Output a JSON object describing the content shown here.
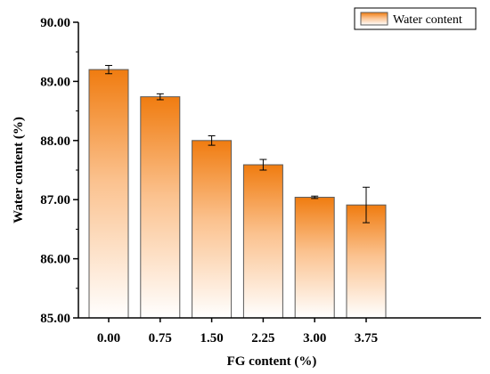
{
  "chart_data": {
    "type": "bar",
    "categories": [
      "0.00",
      "0.75",
      "1.50",
      "2.25",
      "3.00",
      "3.75"
    ],
    "series": [
      {
        "name": "Water content",
        "values": [
          89.2,
          88.74,
          88.0,
          87.59,
          87.04,
          86.91
        ],
        "errors": [
          0.07,
          0.05,
          0.08,
          0.09,
          0.02,
          0.3
        ]
      }
    ],
    "xlabel": "FG content (%)",
    "ylabel": "Water content (%)",
    "ylim": [
      85.0,
      90.0
    ],
    "yticks": [
      "85.00",
      "86.00",
      "87.00",
      "88.00",
      "89.00",
      "90.00"
    ],
    "legend": "top-right",
    "grid": false,
    "colors": {
      "bar_top": "#f07c10",
      "bar_bottom": "#ffffff",
      "bar_edge": "#5a5a5a",
      "axis": "#000000"
    }
  }
}
